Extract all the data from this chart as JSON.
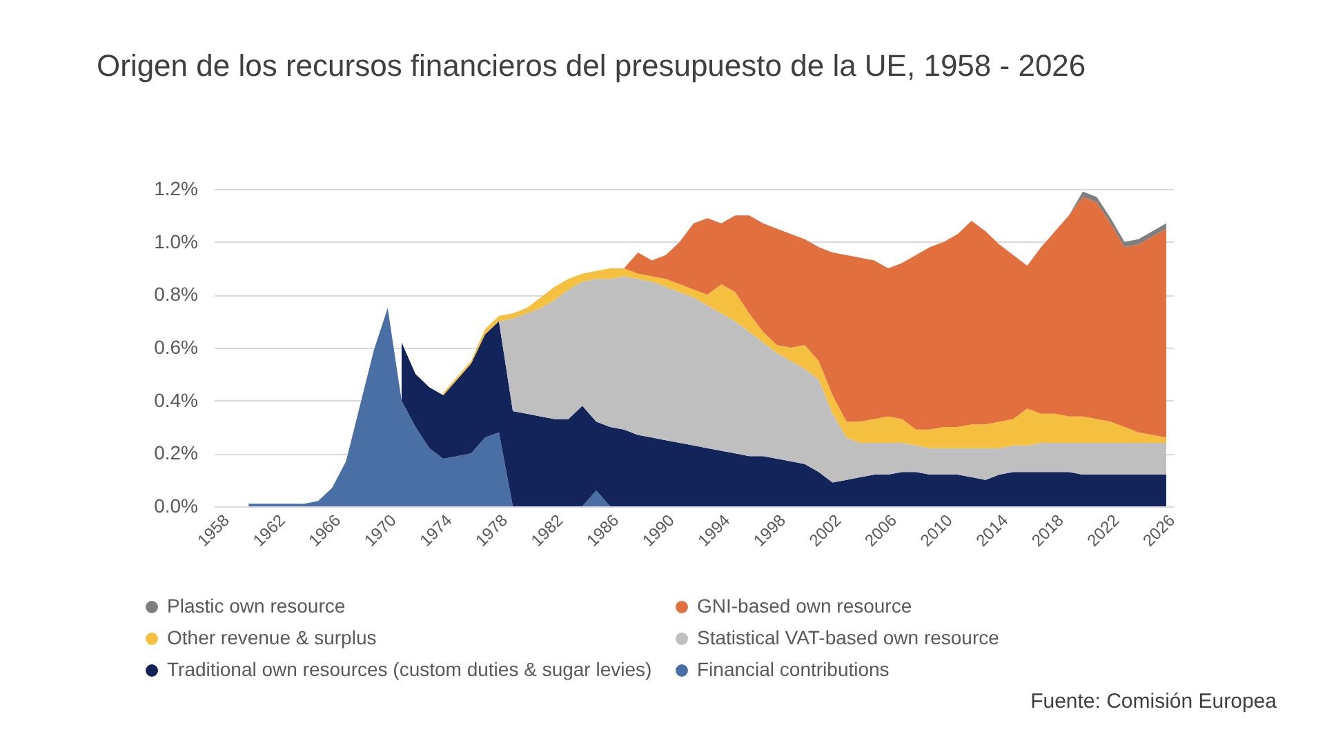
{
  "chart_data": {
    "type": "area",
    "stacked": true,
    "title": "Origen de los recursos financieros del presupuesto de la UE, 1958 - 2026",
    "annotations": [
      "Fuente: Comisión Europea"
    ],
    "x": [
      1960,
      1961,
      1962,
      1963,
      1964,
      1965,
      1966,
      1967,
      1968,
      1969,
      1970,
      1971,
      1972,
      1973,
      1974,
      1975,
      1976,
      1977,
      1978,
      1979,
      1980,
      1981,
      1982,
      1983,
      1984,
      1985,
      1986,
      1987,
      1988,
      1989,
      1990,
      1991,
      1992,
      1993,
      1994,
      1995,
      1996,
      1997,
      1998,
      1999,
      2000,
      2001,
      2002,
      2003,
      2004,
      2005,
      2006,
      2007,
      2008,
      2009,
      2010,
      2011,
      2012,
      2013,
      2014,
      2015,
      2016,
      2017,
      2018,
      2019,
      2020,
      2021,
      2022,
      2023,
      2024,
      2025,
      2026
    ],
    "series": [
      {
        "name": "Financial contributions",
        "color": "#4a6fa5",
        "values": [
          0.01,
          0.01,
          0.01,
          0.01,
          0.01,
          0.02,
          0.07,
          0.17,
          0.38,
          0.59,
          0.75,
          0.4,
          0.3,
          0.22,
          0.18,
          0.19,
          0.2,
          0.26,
          0.28,
          0,
          0,
          0,
          0,
          0,
          0,
          0.06,
          0,
          null,
          null,
          null,
          null,
          null,
          null,
          null,
          null,
          null,
          null,
          null,
          null,
          null,
          null,
          null,
          null,
          null,
          null,
          null,
          null,
          null,
          null,
          null,
          null,
          null,
          null,
          null,
          null,
          null,
          null,
          null,
          null,
          null,
          null,
          null,
          null,
          null,
          null,
          null,
          null
        ]
      },
      {
        "name": "Traditional own resources (custom duties & sugar levies)",
        "color": "#13245a",
        "values": [
          null,
          null,
          null,
          null,
          null,
          null,
          null,
          null,
          null,
          null,
          null,
          0.22,
          0.2,
          0.23,
          0.24,
          0.29,
          0.34,
          0.39,
          0.42,
          0.36,
          0.35,
          0.34,
          0.33,
          0.33,
          0.38,
          0.26,
          0.3,
          0.29,
          0.27,
          0.26,
          0.25,
          0.24,
          0.23,
          0.22,
          0.21,
          0.2,
          0.19,
          0.19,
          0.18,
          0.17,
          0.16,
          0.13,
          0.09,
          0.1,
          0.11,
          0.12,
          0.12,
          0.13,
          0.13,
          0.12,
          0.12,
          0.12,
          0.11,
          0.1,
          0.12,
          0.13,
          0.13,
          0.13,
          0.13,
          0.13,
          0.12,
          0.12,
          0.12,
          0.12,
          0.12,
          0.12,
          0.12
        ]
      },
      {
        "name": "Statistical VAT-based own resource",
        "color": "#bfbfbf",
        "values": [
          null,
          null,
          null,
          null,
          null,
          null,
          null,
          null,
          null,
          null,
          null,
          null,
          null,
          null,
          null,
          null,
          null,
          null,
          0,
          0.35,
          0.38,
          0.41,
          0.45,
          0.49,
          0.47,
          0.54,
          0.56,
          0.58,
          0.59,
          0.59,
          0.58,
          0.57,
          0.56,
          0.54,
          0.52,
          0.5,
          0.47,
          0.43,
          0.4,
          0.38,
          0.36,
          0.35,
          0.26,
          0.16,
          0.13,
          0.12,
          0.12,
          0.11,
          0.1,
          0.1,
          0.1,
          0.1,
          0.11,
          0.12,
          0.1,
          0.1,
          0.1,
          0.11,
          0.11,
          0.11,
          0.12,
          0.12,
          0.12,
          0.12,
          0.12,
          0.12,
          0.12
        ]
      },
      {
        "name": "Other revenue & surplus",
        "color": "#f5c040",
        "values": [
          null,
          null,
          null,
          null,
          null,
          null,
          null,
          null,
          null,
          null,
          null,
          null,
          null,
          null,
          0.01,
          0.01,
          0.01,
          0.02,
          0.02,
          0.02,
          0.02,
          0.04,
          0.05,
          0.04,
          0.03,
          0.03,
          0.04,
          0.03,
          0.02,
          0.02,
          0.03,
          0.03,
          0.03,
          0.04,
          0.11,
          0.11,
          0.07,
          0.04,
          0.03,
          0.05,
          0.09,
          0.07,
          0.07,
          0.06,
          0.08,
          0.09,
          0.1,
          0.09,
          0.06,
          0.07,
          0.08,
          0.08,
          0.09,
          0.09,
          0.1,
          0.1,
          0.14,
          0.11,
          0.11,
          0.1,
          0.1,
          0.09,
          0.08,
          0.06,
          0.04,
          0.03,
          0.02
        ]
      },
      {
        "name": "GNI-based own resource",
        "color": "#e2703f",
        "values": [
          null,
          null,
          null,
          null,
          null,
          null,
          null,
          null,
          null,
          null,
          null,
          null,
          null,
          null,
          null,
          null,
          null,
          null,
          null,
          null,
          null,
          null,
          null,
          null,
          null,
          null,
          null,
          0,
          0.08,
          0.06,
          0.09,
          0.16,
          0.25,
          0.29,
          0.23,
          0.29,
          0.37,
          0.41,
          0.44,
          0.43,
          0.4,
          0.43,
          0.54,
          0.63,
          0.62,
          0.6,
          0.56,
          0.59,
          0.66,
          0.69,
          0.7,
          0.73,
          0.77,
          0.73,
          0.67,
          0.62,
          0.54,
          0.63,
          0.69,
          0.76,
          0.83,
          0.82,
          0.75,
          0.68,
          0.71,
          0.75,
          0.79
        ]
      },
      {
        "name": "Plastic own resource",
        "color": "#7f7f7f",
        "values": [
          null,
          null,
          null,
          null,
          null,
          null,
          null,
          null,
          null,
          null,
          null,
          null,
          null,
          null,
          null,
          null,
          null,
          null,
          null,
          null,
          null,
          null,
          null,
          null,
          null,
          null,
          null,
          null,
          null,
          null,
          null,
          null,
          null,
          null,
          null,
          null,
          null,
          null,
          null,
          null,
          null,
          null,
          null,
          null,
          null,
          null,
          null,
          null,
          null,
          null,
          null,
          null,
          null,
          null,
          null,
          null,
          null,
          null,
          null,
          0,
          0.02,
          0.02,
          0.02,
          0.02,
          0.02,
          0.02,
          0.02
        ]
      }
    ],
    "xlim": [
      1957.5,
      2026.5
    ],
    "xticks": [
      1958,
      1962,
      1966,
      1970,
      1974,
      1978,
      1982,
      1986,
      1990,
      1994,
      1998,
      2002,
      2006,
      2010,
      2014,
      2018,
      2022,
      2026
    ],
    "ylim": [
      0,
      1.2
    ],
    "yticks": [
      {
        "value": 0,
        "label": "0.0%"
      },
      {
        "value": 0.2,
        "label": "0.2%"
      },
      {
        "value": 0.4,
        "label": "0.4%"
      },
      {
        "value": 0.6,
        "label": "0.6%"
      },
      {
        "value": 0.8,
        "label": "0.8%"
      },
      {
        "value": 1.0,
        "label": "1.0%"
      },
      {
        "value": 1.2,
        "label": "1.2%"
      }
    ],
    "grid": "y",
    "legend": "bottom"
  }
}
